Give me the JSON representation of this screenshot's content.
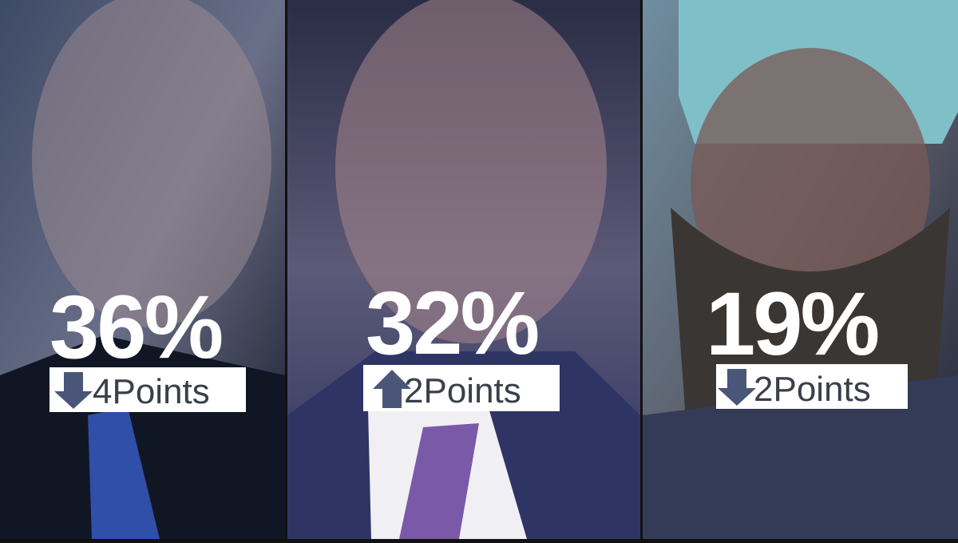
{
  "panels": [
    {
      "percent": "36%",
      "change": "4Points"
    },
    {
      "percent": "32%",
      "change": "2Points"
    },
    {
      "percent": "19%",
      "change": "2Points"
    }
  ]
}
